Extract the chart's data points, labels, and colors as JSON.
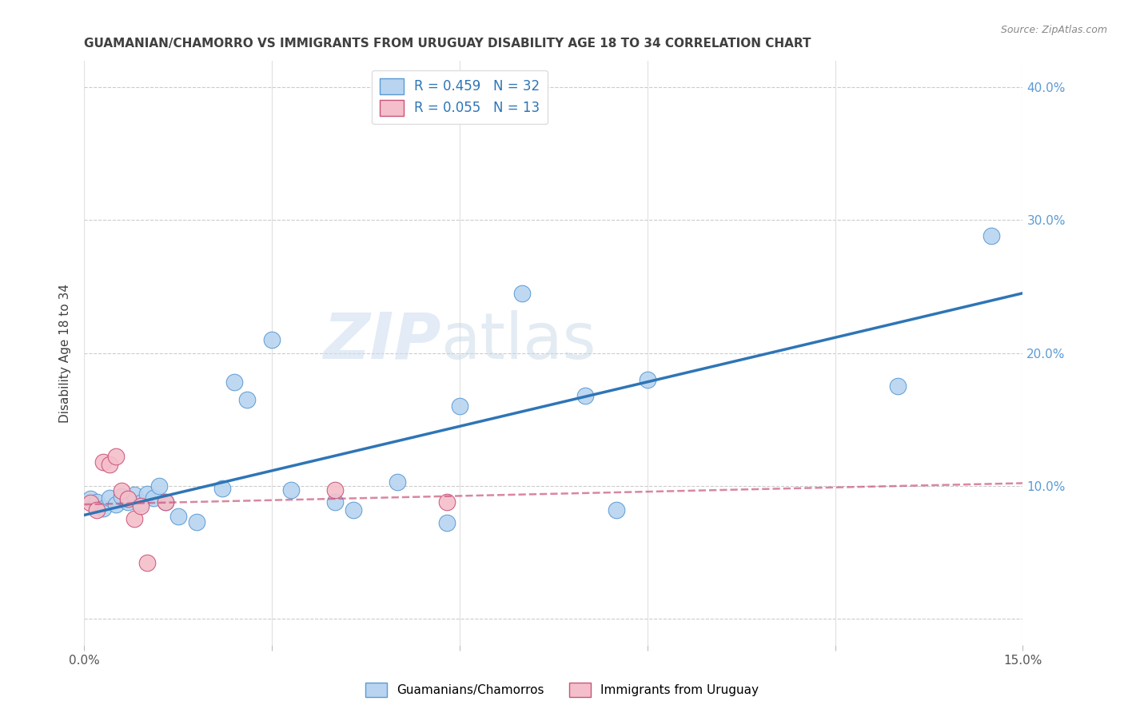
{
  "title": "GUAMANIAN/CHAMORRO VS IMMIGRANTS FROM URUGUAY DISABILITY AGE 18 TO 34 CORRELATION CHART",
  "source": "Source: ZipAtlas.com",
  "ylabel": "Disability Age 18 to 34",
  "xlim": [
    0.0,
    0.15
  ],
  "ylim": [
    -0.02,
    0.42
  ],
  "xticks": [
    0.0,
    0.03,
    0.06,
    0.09,
    0.12,
    0.15
  ],
  "ytick_positions": [
    0.0,
    0.1,
    0.2,
    0.3,
    0.4
  ],
  "ytick_labels": [
    "",
    "10.0%",
    "20.0%",
    "30.0%",
    "40.0%"
  ],
  "blue_R": 0.459,
  "blue_N": 32,
  "pink_R": 0.055,
  "pink_N": 13,
  "legend_label_blue": "Guamanians/Chamorros",
  "legend_label_pink": "Immigrants from Uruguay",
  "blue_scatter_x": [
    0.001,
    0.002,
    0.003,
    0.004,
    0.005,
    0.006,
    0.007,
    0.008,
    0.009,
    0.01,
    0.011,
    0.012,
    0.013,
    0.015,
    0.018,
    0.022,
    0.024,
    0.026,
    0.03,
    0.033,
    0.04,
    0.043,
    0.05,
    0.058,
    0.06,
    0.067,
    0.07,
    0.08,
    0.085,
    0.09,
    0.13,
    0.145
  ],
  "blue_scatter_y": [
    0.09,
    0.088,
    0.083,
    0.091,
    0.086,
    0.092,
    0.088,
    0.093,
    0.087,
    0.094,
    0.091,
    0.1,
    0.088,
    0.077,
    0.073,
    0.098,
    0.178,
    0.165,
    0.21,
    0.097,
    0.088,
    0.082,
    0.103,
    0.072,
    0.16,
    0.38,
    0.245,
    0.168,
    0.082,
    0.18,
    0.175,
    0.288
  ],
  "pink_scatter_x": [
    0.001,
    0.002,
    0.003,
    0.004,
    0.005,
    0.006,
    0.007,
    0.008,
    0.009,
    0.01,
    0.013,
    0.04,
    0.058
  ],
  "pink_scatter_y": [
    0.087,
    0.082,
    0.118,
    0.116,
    0.122,
    0.096,
    0.09,
    0.075,
    0.085,
    0.042,
    0.088,
    0.097,
    0.088
  ],
  "blue_line_x": [
    0.0,
    0.15
  ],
  "blue_line_y": [
    0.078,
    0.245
  ],
  "pink_line_x": [
    0.0,
    0.15
  ],
  "pink_line_y": [
    0.086,
    0.102
  ],
  "watermark_zip": "ZIP",
  "watermark_atlas": "atlas",
  "bg_color": "#ffffff",
  "blue_marker_color": "#B8D4F0",
  "blue_marker_edge": "#5B9BD5",
  "blue_line_color": "#2E75B6",
  "pink_marker_color": "#F4BFCA",
  "pink_marker_edge": "#C9547A",
  "pink_line_color": "#C9547A",
  "grid_h_color": "#cccccc",
  "grid_v_color": "#e0e0e0",
  "right_tick_color": "#5B9BD5",
  "title_color": "#404040",
  "source_color": "#888888",
  "ylabel_color": "#404040"
}
